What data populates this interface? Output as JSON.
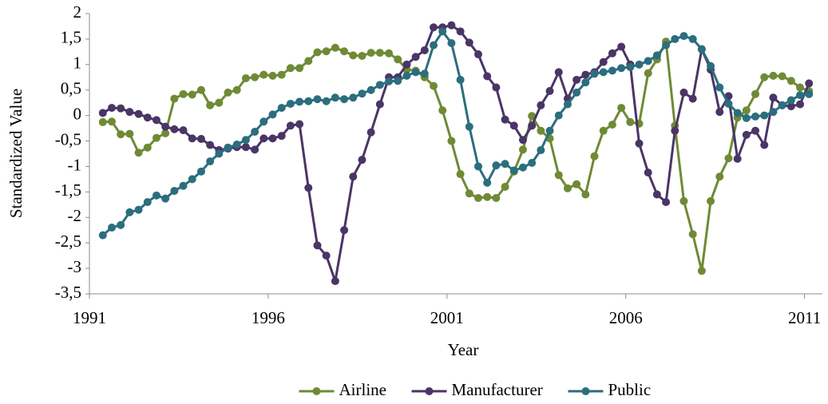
{
  "chart_data": {
    "type": "line",
    "x_label": "Year",
    "y_label": "Standardized Value",
    "xlim": [
      1991,
      2011.5
    ],
    "xticks": [
      1991,
      1996,
      2001,
      2006,
      2011
    ],
    "ylim": [
      -3.5,
      2
    ],
    "yticks": [
      2,
      {
        "value": 1.5,
        "label": "1,5"
      },
      1,
      {
        "value": 0.5,
        "label": "0,5"
      },
      0,
      {
        "value": -0.5,
        "label": "-0,5"
      },
      -1,
      {
        "value": -1.5,
        "label": "-1,5"
      },
      -2,
      {
        "value": -2.5,
        "label": "-2,5"
      },
      -3,
      {
        "value": -3.5,
        "label": "-3,5"
      }
    ],
    "grid": false,
    "legend": "bottom",
    "x": [
      1991.375,
      1991.625,
      1991.875,
      1992.125,
      1992.375,
      1992.625,
      1992.875,
      1993.125,
      1993.375,
      1993.625,
      1993.875,
      1994.125,
      1994.375,
      1994.625,
      1994.875,
      1995.125,
      1995.375,
      1995.625,
      1995.875,
      1996.125,
      1996.375,
      1996.625,
      1996.875,
      1997.125,
      1997.375,
      1997.625,
      1997.875,
      1998.125,
      1998.375,
      1998.625,
      1998.875,
      1999.125,
      1999.375,
      1999.625,
      1999.875,
      2000.125,
      2000.375,
      2000.625,
      2000.875,
      2001.125,
      2001.375,
      2001.625,
      2001.875,
      2002.125,
      2002.375,
      2002.625,
      2002.875,
      2003.125,
      2003.375,
      2003.625,
      2003.875,
      2004.125,
      2004.375,
      2004.625,
      2004.875,
      2005.125,
      2005.375,
      2005.625,
      2005.875,
      2006.125,
      2006.375,
      2006.625,
      2006.875,
      2007.125,
      2007.375,
      2007.625,
      2007.875,
      2008.125,
      2008.375,
      2008.625,
      2008.875,
      2009.125,
      2009.375,
      2009.625,
      2009.875,
      2010.125,
      2010.375,
      2010.625,
      2010.875,
      2011.125
    ],
    "series": [
      {
        "name": "Airline",
        "color": "#6f8a35",
        "values": [
          -0.13,
          -0.12,
          -0.37,
          -0.36,
          -0.73,
          -0.63,
          -0.44,
          -0.35,
          0.33,
          0.42,
          0.41,
          0.5,
          0.2,
          0.25,
          0.45,
          0.5,
          0.73,
          0.75,
          0.8,
          0.78,
          0.8,
          0.93,
          0.93,
          1.07,
          1.24,
          1.26,
          1.33,
          1.26,
          1.18,
          1.17,
          1.23,
          1.23,
          1.22,
          1.1,
          0.9,
          0.88,
          0.75,
          0.58,
          0.1,
          -0.5,
          -1.15,
          -1.53,
          -1.62,
          -1.6,
          -1.62,
          -1.4,
          -1.1,
          -0.67,
          -0.01,
          -0.3,
          -0.45,
          -1.17,
          -1.43,
          -1.35,
          -1.55,
          -0.8,
          -0.3,
          -0.18,
          0.15,
          -0.13,
          -0.16,
          0.83,
          1.1,
          1.45,
          -0.2,
          -1.68,
          -2.33,
          -3.05,
          -1.68,
          -1.2,
          -0.84,
          -0.04,
          0.1,
          0.42,
          0.75,
          0.78,
          0.77,
          0.68,
          0.55,
          0.48
        ]
      },
      {
        "name": "Manufacturer",
        "color": "#4a3566",
        "values": [
          0.05,
          0.15,
          0.14,
          0.07,
          0.03,
          -0.04,
          -0.09,
          -0.22,
          -0.27,
          -0.29,
          -0.45,
          -0.46,
          -0.58,
          -0.68,
          -0.65,
          -0.62,
          -0.62,
          -0.67,
          -0.45,
          -0.45,
          -0.4,
          -0.2,
          -0.17,
          -1.42,
          -2.55,
          -2.75,
          -3.25,
          -2.25,
          -1.2,
          -0.87,
          -0.33,
          0.22,
          0.75,
          0.75,
          1.0,
          1.15,
          1.28,
          1.73,
          1.73,
          1.77,
          1.65,
          1.43,
          1.2,
          0.77,
          0.55,
          -0.08,
          -0.2,
          -0.48,
          -0.2,
          0.2,
          0.48,
          0.85,
          0.33,
          0.7,
          0.8,
          0.85,
          1.05,
          1.22,
          1.35,
          1.0,
          -0.55,
          -1.12,
          -1.55,
          -1.7,
          -0.3,
          0.45,
          0.33,
          1.3,
          0.9,
          0.07,
          0.38,
          -0.85,
          -0.38,
          -0.3,
          -0.58,
          0.35,
          0.2,
          0.18,
          0.22,
          0.63
        ]
      },
      {
        "name": "Public",
        "color": "#2b6e7e",
        "values": [
          -2.35,
          -2.2,
          -2.15,
          -1.9,
          -1.85,
          -1.7,
          -1.57,
          -1.63,
          -1.48,
          -1.38,
          -1.25,
          -1.1,
          -0.9,
          -0.75,
          -0.63,
          -0.57,
          -0.48,
          -0.32,
          -0.12,
          0.02,
          0.15,
          0.23,
          0.27,
          0.28,
          0.32,
          0.28,
          0.35,
          0.32,
          0.35,
          0.43,
          0.5,
          0.6,
          0.67,
          0.68,
          0.78,
          0.85,
          0.82,
          1.38,
          1.65,
          1.42,
          0.7,
          -0.22,
          -1.0,
          -1.32,
          -0.98,
          -0.95,
          -1.08,
          -1.02,
          -0.93,
          -0.68,
          -0.3,
          0.0,
          0.22,
          0.45,
          0.65,
          0.82,
          0.85,
          0.88,
          0.93,
          0.95,
          1.0,
          1.07,
          1.18,
          1.38,
          1.5,
          1.56,
          1.5,
          1.3,
          0.97,
          0.55,
          0.23,
          0.05,
          -0.05,
          -0.02,
          0.0,
          0.07,
          0.2,
          0.3,
          0.4,
          0.42
        ]
      }
    ]
  }
}
